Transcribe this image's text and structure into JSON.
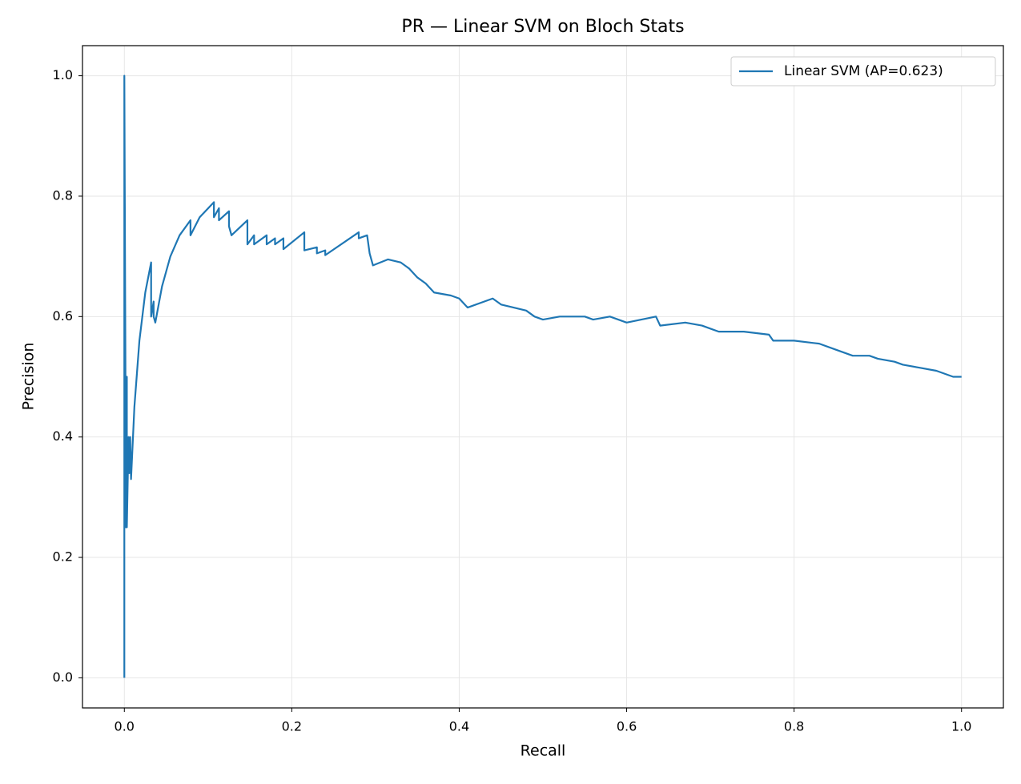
{
  "chart_data": {
    "type": "line",
    "title": "PR — Linear SVM on Bloch Stats",
    "xlabel": "Recall",
    "ylabel": "Precision",
    "x": [
      0,
      0,
      0.002,
      0.003,
      0.003,
      0.005,
      0.006,
      0.007,
      0.008,
      0.012,
      0.018,
      0.025,
      0.032,
      0.032,
      0.035,
      0.035,
      0.037,
      0.045,
      0.055,
      0.066,
      0.079,
      0.079,
      0.09,
      0.107,
      0.107,
      0.113,
      0.113,
      0.125,
      0.125,
      0.128,
      0.147,
      0.147,
      0.155,
      0.155,
      0.17,
      0.17,
      0.18,
      0.18,
      0.19,
      0.19,
      0.215,
      0.215,
      0.23,
      0.23,
      0.24,
      0.24,
      0.28,
      0.28,
      0.29,
      0.293,
      0.297,
      0.315,
      0.33,
      0.34,
      0.35,
      0.36,
      0.37,
      0.39,
      0.4,
      0.41,
      0.44,
      0.45,
      0.48,
      0.49,
      0.5,
      0.52,
      0.55,
      0.56,
      0.58,
      0.6,
      0.635,
      0.64,
      0.67,
      0.69,
      0.71,
      0.74,
      0.77,
      0.775,
      0.8,
      0.83,
      0.85,
      0.87,
      0.89,
      0.9,
      0.92,
      0.93,
      0.95,
      0.97,
      0.98,
      0.99,
      1.0
    ],
    "series": [
      {
        "name": "Linear SVM (AP=0.623)",
        "color": "#1f77b4",
        "values": [
          0,
          1.0,
          0.25,
          0.5,
          0.25,
          0.4,
          0.34,
          0.4,
          0.33,
          0.45,
          0.56,
          0.64,
          0.69,
          0.6,
          0.625,
          0.6,
          0.59,
          0.65,
          0.7,
          0.735,
          0.76,
          0.735,
          0.765,
          0.79,
          0.765,
          0.78,
          0.76,
          0.775,
          0.75,
          0.735,
          0.76,
          0.72,
          0.735,
          0.72,
          0.735,
          0.72,
          0.73,
          0.72,
          0.73,
          0.712,
          0.74,
          0.71,
          0.715,
          0.705,
          0.71,
          0.702,
          0.74,
          0.73,
          0.735,
          0.705,
          0.685,
          0.695,
          0.69,
          0.68,
          0.665,
          0.655,
          0.64,
          0.635,
          0.63,
          0.615,
          0.63,
          0.62,
          0.61,
          0.6,
          0.595,
          0.6,
          0.6,
          0.595,
          0.6,
          0.59,
          0.6,
          0.585,
          0.59,
          0.585,
          0.575,
          0.575,
          0.57,
          0.56,
          0.56,
          0.555,
          0.545,
          0.535,
          0.535,
          0.53,
          0.525,
          0.52,
          0.515,
          0.51,
          0.505,
          0.5,
          0.5
        ]
      }
    ],
    "xlim": [
      -0.05,
      1.05
    ],
    "ylim": [
      -0.05,
      1.05
    ],
    "xticks": [
      {
        "value": 0,
        "label": "0.0"
      },
      0.2,
      0.4,
      0.6,
      0.8,
      {
        "value": 1,
        "label": "1.0"
      }
    ],
    "yticks": [
      {
        "value": 0,
        "label": "0.0"
      },
      0.2,
      0.4,
      0.6,
      0.8,
      {
        "value": 1,
        "label": "1.0"
      }
    ],
    "grid": true,
    "legend": "upper right"
  }
}
